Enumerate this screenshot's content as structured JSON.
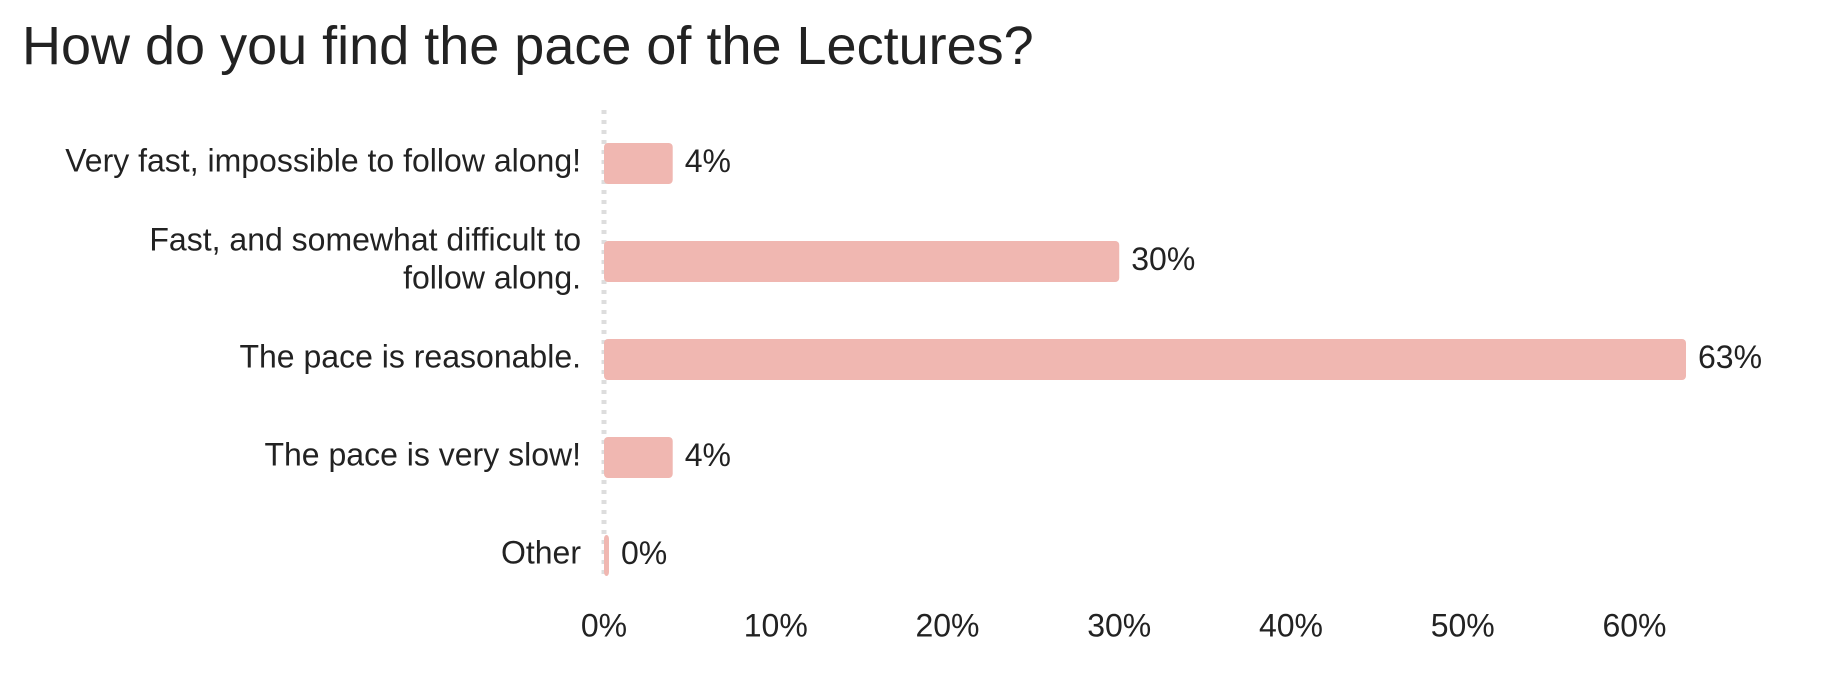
{
  "chart_data": {
    "type": "bar",
    "orientation": "horizontal",
    "title": "How do you find the pace of the Lectures?",
    "categories": [
      [
        "Very fast, impossible to follow along!"
      ],
      [
        "Fast, and somewhat difficult to",
        "follow along."
      ],
      [
        "The pace is reasonable."
      ],
      [
        "The pace is very slow!"
      ],
      [
        "Other"
      ]
    ],
    "values": [
      4,
      30,
      63,
      4,
      0
    ],
    "value_labels": [
      "4%",
      "30%",
      "63%",
      "4%",
      "0%"
    ],
    "xlim": [
      0,
      63
    ],
    "x_ticks": [
      0,
      10,
      20,
      30,
      40,
      50,
      60
    ],
    "x_tick_labels": [
      "0%",
      "10%",
      "20%",
      "30%",
      "40%",
      "50%",
      "60%"
    ],
    "bar_color": "#f0b7b1",
    "baseline_color": "#dddddd",
    "text_color": "#222222",
    "grid": false,
    "legend": "none"
  }
}
